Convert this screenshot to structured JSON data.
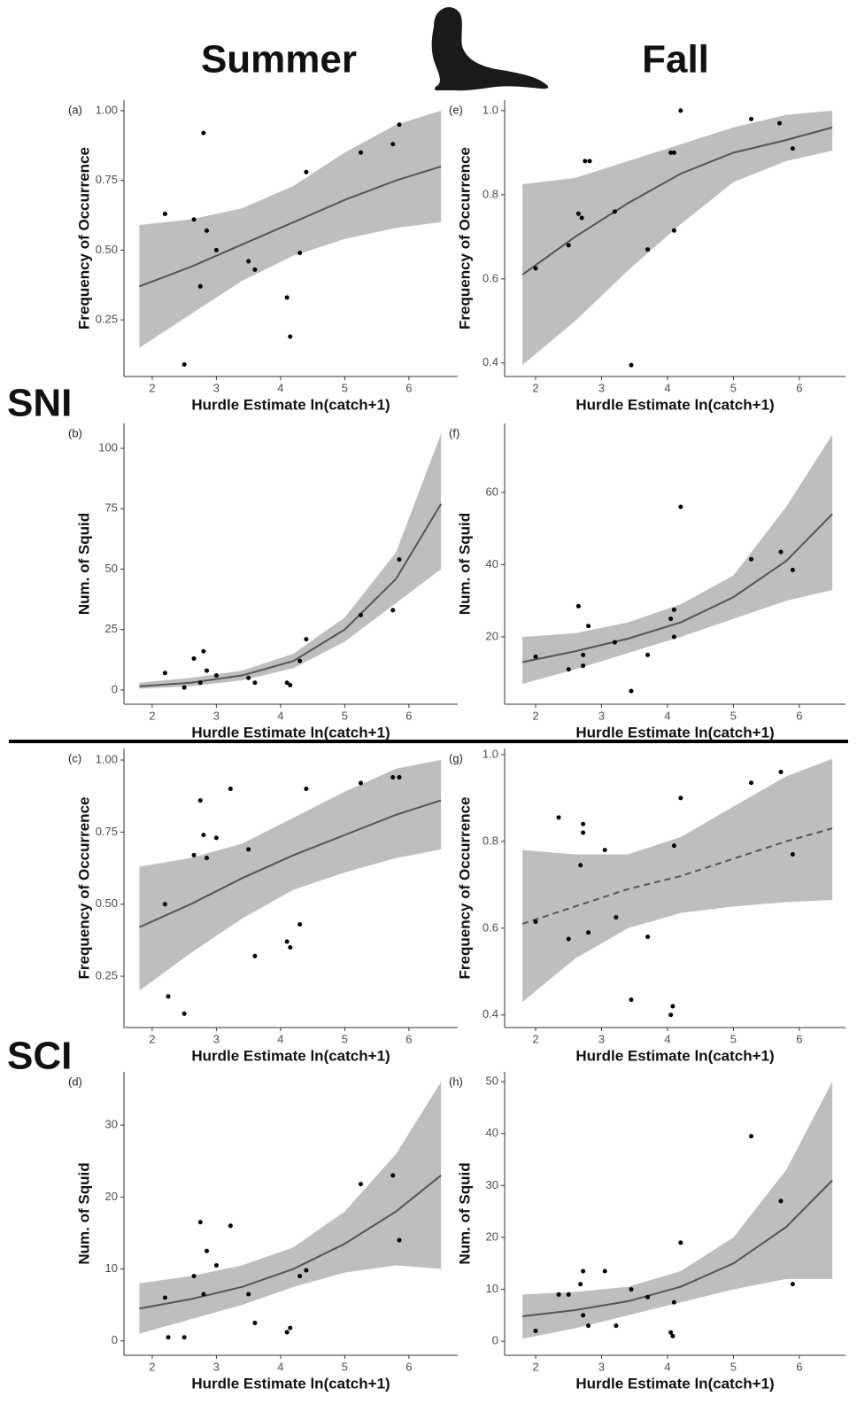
{
  "column_labels": [
    "Summer",
    "Fall"
  ],
  "row_labels": [
    "SNI",
    "SCI"
  ],
  "chart_data": [
    {
      "type": "scatter",
      "panel": "(a)",
      "ylabel": "Frequency of Occurrence",
      "xlabel": "Hurdle Estimate ln(catch+1)",
      "x": [
        2.2,
        2.5,
        2.65,
        2.75,
        2.8,
        2.85,
        3.0,
        3.5,
        3.6,
        4.1,
        4.15,
        4.3,
        4.4,
        5.25,
        5.75,
        5.85
      ],
      "values": [
        0.63,
        0.09,
        0.61,
        0.37,
        0.92,
        0.57,
        0.5,
        0.46,
        0.43,
        0.33,
        0.19,
        0.49,
        0.78,
        0.85,
        0.88,
        0.95
      ],
      "fit": {
        "x": [
          1.8,
          2.6,
          3.4,
          4.2,
          5.0,
          5.8,
          6.5
        ],
        "values": [
          0.37,
          0.44,
          0.52,
          0.6,
          0.68,
          0.75,
          0.8
        ],
        "lower": [
          0.15,
          0.27,
          0.39,
          0.48,
          0.54,
          0.58,
          0.6
        ],
        "upper": [
          0.59,
          0.61,
          0.65,
          0.73,
          0.85,
          0.95,
          1.0
        ],
        "line_style": "solid"
      },
      "xlim": [
        1.56,
        6.76
      ],
      "ylim": [
        0.047,
        1.038
      ],
      "xticks": [
        2,
        3,
        4,
        5,
        6
      ],
      "yticks": [
        0.25,
        {
          "value": 0.5,
          "label": "0.50"
        },
        0.75,
        {
          "value": 1,
          "label": "1.00"
        }
      ],
      "point_color": "#000000",
      "band_color": "#bebebe",
      "line_color": "#555555"
    },
    {
      "type": "scatter",
      "panel": "(e)",
      "ylabel": "Frequency of Occurrence",
      "xlabel": "Hurdle Estimate ln(catch+1)",
      "x": [
        2.0,
        2.5,
        2.65,
        2.7,
        2.75,
        2.82,
        3.2,
        3.45,
        3.7,
        4.05,
        4.1,
        4.1,
        4.2,
        5.27,
        5.7,
        5.9
      ],
      "values": [
        0.625,
        0.68,
        0.755,
        0.745,
        0.88,
        0.88,
        0.76,
        0.395,
        0.67,
        0.9,
        0.715,
        0.9,
        1.0,
        0.98,
        0.97,
        0.91
      ],
      "fit": {
        "x": [
          1.8,
          2.6,
          3.4,
          4.2,
          5.0,
          5.8,
          6.5
        ],
        "values": [
          0.61,
          0.7,
          0.78,
          0.85,
          0.9,
          0.93,
          0.96
        ],
        "lower": [
          0.395,
          0.5,
          0.62,
          0.73,
          0.83,
          0.88,
          0.905
        ],
        "upper": [
          0.825,
          0.84,
          0.88,
          0.92,
          0.96,
          0.99,
          1.0
        ],
        "line_style": "solid"
      },
      "xlim": [
        1.53,
        6.7
      ],
      "ylim": [
        0.368,
        1.025
      ],
      "xticks": [
        2,
        3,
        4,
        5,
        6
      ],
      "yticks": [
        0.4,
        0.6,
        0.8,
        {
          "value": 1,
          "label": "1.0"
        }
      ],
      "point_color": "#000000",
      "band_color": "#bebebe",
      "line_color": "#555555"
    },
    {
      "type": "scatter",
      "panel": "(b)",
      "ylabel": "Num. of Squid",
      "xlabel": "Hurdle Estimate ln(catch+1)",
      "x": [
        2.2,
        2.5,
        2.65,
        2.75,
        2.8,
        2.85,
        3.0,
        3.5,
        3.6,
        4.1,
        4.15,
        4.3,
        4.4,
        5.25,
        5.75,
        5.85
      ],
      "values": [
        7,
        1,
        13,
        3,
        16,
        8,
        6,
        5,
        3,
        3,
        2,
        12,
        21,
        31,
        33,
        54
      ],
      "fit": {
        "x": [
          1.8,
          2.6,
          3.4,
          4.2,
          5.0,
          5.8,
          6.5
        ],
        "values": [
          1.5,
          3,
          6,
          12,
          25,
          46,
          77
        ],
        "lower": [
          0.5,
          1.5,
          4,
          9,
          20,
          36,
          50
        ],
        "upper": [
          3,
          5,
          8,
          15,
          30,
          57,
          106
        ],
        "line_style": "solid"
      },
      "xlim": [
        1.56,
        6.76
      ],
      "ylim": [
        -5.9,
        110.3
      ],
      "xticks": [
        2,
        3,
        4,
        5,
        6
      ],
      "yticks": [
        0,
        25,
        50,
        75,
        100
      ],
      "point_color": "#000000",
      "band_color": "#bebebe",
      "line_color": "#555555"
    },
    {
      "type": "scatter",
      "panel": "(f)",
      "ylabel": "Num. of Squid",
      "xlabel": "Hurdle Estimate ln(catch+1)",
      "x": [
        2.0,
        2.5,
        2.65,
        2.72,
        2.72,
        2.8,
        3.2,
        3.45,
        3.7,
        4.05,
        4.1,
        4.1,
        4.2,
        5.27,
        5.72,
        5.9
      ],
      "values": [
        14.5,
        11,
        28.5,
        12,
        15,
        23,
        18.5,
        5,
        15,
        25,
        20,
        27.5,
        56,
        41.5,
        43.5,
        38.5
      ],
      "fit": {
        "x": [
          1.8,
          2.6,
          3.4,
          4.2,
          5.0,
          5.8,
          6.5
        ],
        "values": [
          13,
          16,
          19.5,
          24,
          31,
          41,
          54
        ],
        "lower": [
          7,
          11,
          15.5,
          20,
          25,
          30,
          33
        ],
        "upper": [
          20,
          21,
          24,
          29,
          37,
          56,
          76
        ],
        "line_style": "solid"
      },
      "xlim": [
        1.53,
        6.7
      ],
      "ylim": [
        1.35,
        79.1
      ],
      "xticks": [
        2,
        3,
        4,
        5,
        6
      ],
      "yticks": [
        20,
        40,
        60
      ],
      "point_color": "#000000",
      "band_color": "#bebebe",
      "line_color": "#555555"
    },
    {
      "type": "scatter",
      "panel": "(c)",
      "ylabel": "Frequency of Occurrence",
      "xlabel": "Hurdle Estimate ln(catch+1)",
      "x": [
        2.2,
        2.25,
        2.5,
        2.65,
        2.75,
        2.8,
        2.85,
        3.0,
        3.22,
        3.5,
        3.6,
        4.1,
        4.15,
        4.3,
        4.4,
        5.25,
        5.75,
        5.85
      ],
      "values": [
        0.5,
        0.18,
        0.12,
        0.67,
        0.86,
        0.74,
        0.66,
        0.73,
        0.9,
        0.69,
        0.32,
        0.37,
        0.35,
        0.43,
        0.9,
        0.92,
        0.94,
        0.94
      ],
      "fit": {
        "x": [
          1.8,
          2.6,
          3.4,
          4.2,
          5.0,
          5.8,
          6.5
        ],
        "values": [
          0.42,
          0.5,
          0.59,
          0.67,
          0.74,
          0.81,
          0.86
        ],
        "lower": [
          0.2,
          0.33,
          0.45,
          0.55,
          0.61,
          0.66,
          0.69
        ],
        "upper": [
          0.63,
          0.66,
          0.71,
          0.8,
          0.89,
          0.97,
          1.0
        ],
        "line_style": "solid"
      },
      "xlim": [
        1.56,
        6.76
      ],
      "ylim": [
        0.072,
        1.04
      ],
      "xticks": [
        2,
        3,
        4,
        5,
        6
      ],
      "yticks": [
        0.25,
        {
          "value": 0.5,
          "label": "0.50"
        },
        0.75,
        {
          "value": 1,
          "label": "1.00"
        }
      ],
      "point_color": "#000000",
      "band_color": "#bebebe",
      "line_color": "#555555"
    },
    {
      "type": "scatter",
      "panel": "(g)",
      "ylabel": "Frequency of Occurrence",
      "xlabel": "Hurdle Estimate ln(catch+1)",
      "x": [
        2.0,
        2.35,
        2.5,
        2.68,
        2.72,
        2.72,
        2.8,
        3.05,
        3.22,
        3.45,
        3.7,
        4.05,
        4.08,
        4.1,
        4.2,
        5.27,
        5.72,
        5.9
      ],
      "values": [
        0.615,
        0.855,
        0.575,
        0.745,
        0.82,
        0.84,
        0.59,
        0.78,
        0.625,
        0.435,
        0.58,
        0.4,
        0.42,
        0.79,
        0.9,
        0.935,
        0.96,
        0.77
      ],
      "fit": {
        "x": [
          1.8,
          2.6,
          3.4,
          4.2,
          5.0,
          5.8,
          6.5
        ],
        "values": [
          0.61,
          0.65,
          0.69,
          0.72,
          0.76,
          0.8,
          0.83
        ],
        "lower": [
          0.43,
          0.53,
          0.6,
          0.635,
          0.65,
          0.66,
          0.665
        ],
        "upper": [
          0.78,
          0.77,
          0.77,
          0.81,
          0.88,
          0.95,
          0.99
        ],
        "line_style": "dashed"
      },
      "xlim": [
        1.53,
        6.7
      ],
      "ylim": [
        0.371,
        1.014
      ],
      "xticks": [
        2,
        3,
        4,
        5,
        6
      ],
      "yticks": [
        0.4,
        0.6,
        0.8,
        {
          "value": 1,
          "label": "1.0"
        }
      ],
      "point_color": "#000000",
      "band_color": "#bebebe",
      "line_color": "#555555"
    },
    {
      "type": "scatter",
      "panel": "(d)",
      "ylabel": "Num. of Squid",
      "xlabel": "Hurdle Estimate ln(catch+1)",
      "x": [
        2.2,
        2.25,
        2.5,
        2.65,
        2.75,
        2.8,
        2.85,
        3.0,
        3.22,
        3.5,
        3.6,
        4.1,
        4.15,
        4.3,
        4.4,
        5.25,
        5.75,
        5.85
      ],
      "values": [
        6,
        0.5,
        0.5,
        9,
        16.5,
        6.5,
        12.5,
        10.5,
        16,
        6.5,
        2.5,
        1.2,
        1.8,
        9,
        9.8,
        21.8,
        23,
        14
      ],
      "fit": {
        "x": [
          1.8,
          2.6,
          3.4,
          4.2,
          5.0,
          5.8,
          6.5
        ],
        "values": [
          4.5,
          5.8,
          7.5,
          10,
          13.5,
          18,
          23
        ],
        "lower": [
          1,
          3,
          5,
          7.5,
          9.5,
          10.5,
          10
        ],
        "upper": [
          8,
          9,
          10.5,
          13,
          18,
          26,
          36
        ],
        "line_style": "solid"
      },
      "xlim": [
        1.56,
        6.76
      ],
      "ylim": [
        -2.0,
        37.4
      ],
      "xticks": [
        2,
        3,
        4,
        5,
        6
      ],
      "yticks": [
        0,
        10,
        20,
        30
      ],
      "point_color": "#000000",
      "band_color": "#bebebe",
      "line_color": "#555555"
    },
    {
      "type": "scatter",
      "panel": "(h)",
      "ylabel": "Num. of Squid",
      "xlabel": "Hurdle Estimate ln(catch+1)",
      "x": [
        2.0,
        2.35,
        2.5,
        2.68,
        2.72,
        2.72,
        2.8,
        3.05,
        3.22,
        3.45,
        3.7,
        4.05,
        4.08,
        4.1,
        4.2,
        5.27,
        5.72,
        5.9
      ],
      "values": [
        2,
        9,
        9,
        11,
        5,
        13.5,
        3,
        13.5,
        3,
        10,
        8.5,
        1.7,
        1,
        7.5,
        19,
        39.5,
        27,
        11
      ],
      "fit": {
        "x": [
          1.8,
          2.6,
          3.4,
          4.2,
          5.0,
          5.8,
          6.5
        ],
        "values": [
          4.8,
          6,
          7.7,
          10.5,
          15,
          22,
          31
        ],
        "lower": [
          0.5,
          2.5,
          5,
          7.5,
          10,
          12,
          12
        ],
        "upper": [
          9,
          9.5,
          10.5,
          13.5,
          20,
          33,
          50
        ],
        "line_style": "solid"
      },
      "xlim": [
        1.53,
        6.7
      ],
      "ylim": [
        -2.7,
        51.9
      ],
      "xticks": [
        2,
        3,
        4,
        5,
        6
      ],
      "yticks": [
        0,
        10,
        20,
        30,
        40,
        50
      ],
      "point_color": "#000000",
      "band_color": "#bebebe",
      "line_color": "#555555"
    }
  ]
}
